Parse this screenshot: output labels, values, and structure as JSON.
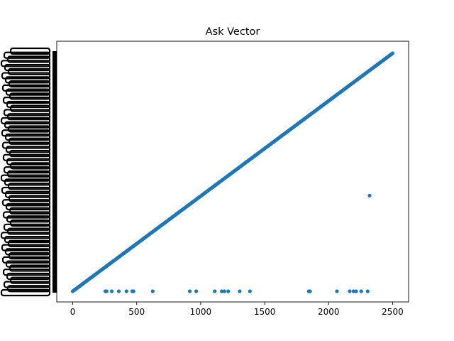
{
  "chart_data": {
    "type": "scatter",
    "title": "Ask Vector",
    "xlabel": "",
    "ylabel": "",
    "xlim": [
      -125,
      2625
    ],
    "xticks": [
      0,
      500,
      1000,
      1500,
      2000,
      2500
    ],
    "grid": false,
    "legend": "none",
    "color": "#1f77b4",
    "y_axis_note": "y tick labels are overprinted into an illegible black band; y expressed as fraction of axis range",
    "ylim": [
      0,
      1
    ],
    "series": [
      {
        "values_description": "near-linear diagonal trend from x=0 to x=2500",
        "trend": {
          "x_start": 0,
          "y_start": 0.0,
          "x_end": 2500,
          "y_end": 1.0,
          "count": 420
        }
      },
      {
        "values_description": "points at bottom baseline",
        "x": [
          255,
          265,
          305,
          360,
          420,
          465,
          475,
          625,
          915,
          965,
          1110,
          1165,
          1185,
          1215,
          1305,
          1385,
          1845,
          1855,
          2065,
          2165,
          2195,
          2215,
          2255,
          2305
        ],
        "y": [
          0,
          0,
          0,
          0,
          0,
          0,
          0,
          0,
          0,
          0,
          0,
          0,
          0,
          0,
          0,
          0,
          0,
          0,
          0,
          0,
          0,
          0,
          0,
          0
        ]
      },
      {
        "values_description": "isolated outlier",
        "x": [
          2320
        ],
        "y": [
          0.402
        ]
      }
    ]
  }
}
